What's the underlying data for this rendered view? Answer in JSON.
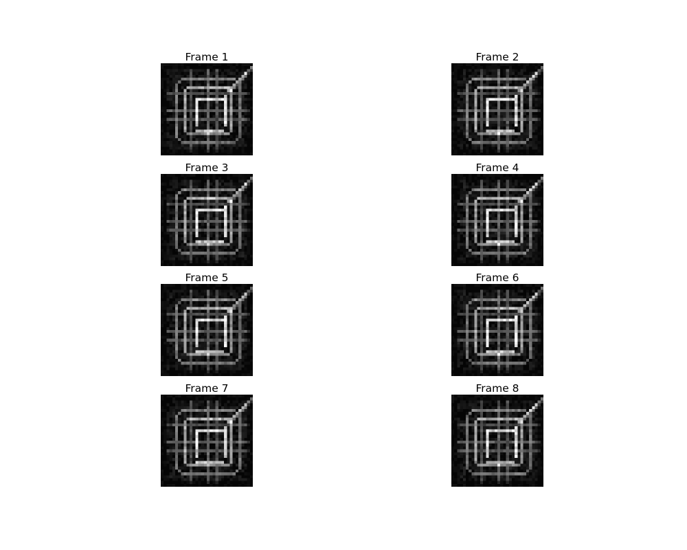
{
  "frames": [
    {
      "title": "Frame 1",
      "colormap": "gray"
    },
    {
      "title": "Frame 2",
      "colormap": "gray"
    },
    {
      "title": "Frame 3",
      "colormap": "gray"
    },
    {
      "title": "Frame 4",
      "colormap": "gray"
    },
    {
      "title": "Frame 5",
      "colormap": "gray"
    },
    {
      "title": "Frame 6",
      "colormap": "gray"
    },
    {
      "title": "Frame 7",
      "colormap": "gray"
    },
    {
      "title": "Frame 8",
      "colormap": "gray"
    }
  ]
}
